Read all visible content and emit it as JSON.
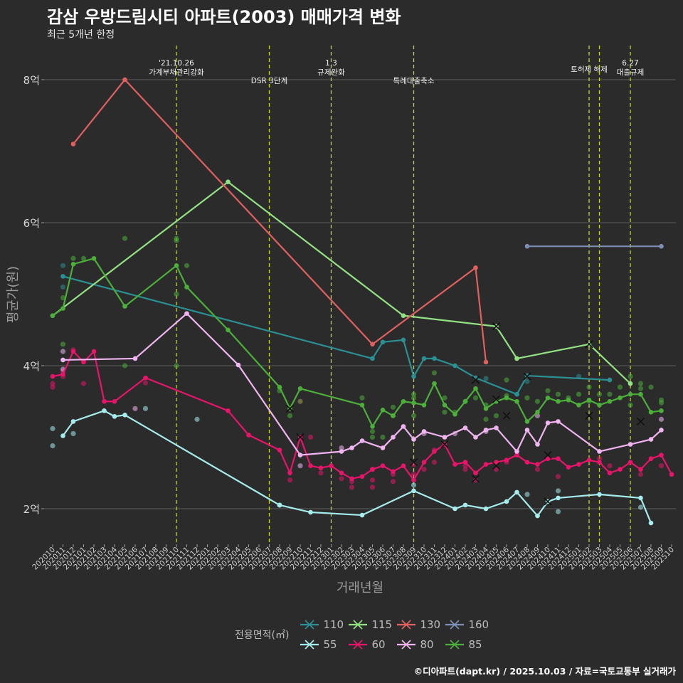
{
  "title": "감삼 우방드림시티 아파트(2003) 매매가격 변화",
  "subtitle": "최근 5개년 한정",
  "caption": "©디아파트(dapt.kr) / 2025.10.03 / 자료=국토교통부 실거래가",
  "chart_data": {
    "type": "line",
    "xlabel": "거래년월",
    "ylabel": "평균가(원)",
    "ylim": [
      1.5,
      8.5
    ],
    "y_ticks": [
      2,
      4,
      6,
      8
    ],
    "y_tick_labels": [
      "2억",
      "4억",
      "6억",
      "8억"
    ],
    "categories": [
      "202010",
      "202011",
      "202012",
      "202101",
      "202102",
      "202103",
      "202104",
      "202105",
      "202106",
      "202107",
      "202108",
      "202109",
      "202110",
      "202111",
      "202112",
      "202201",
      "202202",
      "202203",
      "202204",
      "202205",
      "202206",
      "202207",
      "202208",
      "202209",
      "202210",
      "202211",
      "202212",
      "202301",
      "202302",
      "202303",
      "202304",
      "202305",
      "202306",
      "202307",
      "202308",
      "202309",
      "202310",
      "202311",
      "202312",
      "202401",
      "202402",
      "202403",
      "202404",
      "202405",
      "202406",
      "202407",
      "202408",
      "202409",
      "202410",
      "202411",
      "202412",
      "202501",
      "202502",
      "202503",
      "202504",
      "202505",
      "202506",
      "202507",
      "202508",
      "202509",
      "202510"
    ],
    "legend_title": "전용면적(㎡)",
    "series": [
      {
        "name": "110",
        "color": "#2a9094",
        "x": [
          "202011",
          "202305",
          "202306",
          "202308",
          "202309",
          "202310",
          "202311",
          "202401",
          "202403",
          "202407",
          "202408",
          "202504"
        ],
        "values": [
          5.25,
          4.1,
          4.33,
          4.36,
          3.85,
          4.1,
          4.1,
          4.0,
          3.83,
          3.6,
          3.86,
          3.8
        ]
      },
      {
        "name": "115",
        "color": "#93e283",
        "x": [
          "202010",
          "202203",
          "202308",
          "202405",
          "202407",
          "202502",
          "202506"
        ],
        "values": [
          4.7,
          6.57,
          4.7,
          4.55,
          4.1,
          4.3,
          3.75
        ]
      },
      {
        "name": "130",
        "color": "#e0605f",
        "x": [
          "202012",
          "202105",
          "202305",
          "202403",
          "202404"
        ],
        "values": [
          7.1,
          8.0,
          4.3,
          5.37,
          4.05
        ]
      },
      {
        "name": "160",
        "color": "#7e8fb5",
        "x": [
          "202408",
          "202509"
        ],
        "values": [
          5.67,
          5.67
        ]
      },
      {
        "name": "55",
        "color": "#a6ecec",
        "x": [
          "202011",
          "202012",
          "202103",
          "202104",
          "202105",
          "202208",
          "202211",
          "202304",
          "202309",
          "202401",
          "202402",
          "202404",
          "202406",
          "202407",
          "202409",
          "202410",
          "202411",
          "202503",
          "202507",
          "202508"
        ],
        "values": [
          3.02,
          3.22,
          3.37,
          3.29,
          3.31,
          2.05,
          1.95,
          1.91,
          2.25,
          2.0,
          2.05,
          2.0,
          2.1,
          2.23,
          1.9,
          2.1,
          2.15,
          2.2,
          2.15,
          1.8
        ]
      },
      {
        "name": "60",
        "color": "#e8146a",
        "x": [
          "202010",
          "202011",
          "202012",
          "202101",
          "202102",
          "202103",
          "202104",
          "202107",
          "202203",
          "202205",
          "202208",
          "202209",
          "202210",
          "202211",
          "202212",
          "202301",
          "202302",
          "202303",
          "202304",
          "202305",
          "202306",
          "202307",
          "202308",
          "202309",
          "202310",
          "202311",
          "202312",
          "202401",
          "202402",
          "202403",
          "202404",
          "202405",
          "202406",
          "202407",
          "202408",
          "202409",
          "202410",
          "202411",
          "202412",
          "202501",
          "202502",
          "202503",
          "202504",
          "202505",
          "202506",
          "202507",
          "202508",
          "202509",
          "202510"
        ],
        "values": [
          3.85,
          3.88,
          4.2,
          4.05,
          4.2,
          3.5,
          3.5,
          3.83,
          3.37,
          3.03,
          2.82,
          2.5,
          3.0,
          2.6,
          2.57,
          2.6,
          2.5,
          2.42,
          2.45,
          2.55,
          2.6,
          2.52,
          2.6,
          2.4,
          2.65,
          2.8,
          2.9,
          2.62,
          2.65,
          2.5,
          2.62,
          2.65,
          2.68,
          2.75,
          2.65,
          2.62,
          2.7,
          2.7,
          2.58,
          2.62,
          2.68,
          2.65,
          2.5,
          2.55,
          2.65,
          2.55,
          2.7,
          2.75,
          2.48
        ]
      },
      {
        "name": "80",
        "color": "#f0b4f0",
        "x": [
          "202011",
          "202106",
          "202111",
          "202204",
          "202210",
          "202302",
          "202303",
          "202304",
          "202306",
          "202307",
          "202308",
          "202309",
          "202310",
          "202312",
          "202402",
          "202403",
          "202404",
          "202405",
          "202407",
          "202408",
          "202409",
          "202410",
          "202411",
          "202503",
          "202506",
          "202508",
          "202509"
        ],
        "values": [
          4.08,
          4.1,
          4.73,
          4.01,
          2.75,
          2.8,
          2.85,
          2.95,
          2.85,
          3.0,
          3.15,
          2.97,
          3.08,
          3.0,
          3.13,
          3.0,
          3.1,
          3.13,
          2.8,
          3.1,
          2.9,
          3.2,
          3.22,
          2.8,
          2.9,
          2.97,
          3.1
        ]
      },
      {
        "name": "85",
        "color": "#4caf3a",
        "x": [
          "202010",
          "202011",
          "202012",
          "202102",
          "202105",
          "202110",
          "202111",
          "202203",
          "202208",
          "202209",
          "202210",
          "202304",
          "202305",
          "202306",
          "202307",
          "202308",
          "202309",
          "202310",
          "202311",
          "202312",
          "202401",
          "202402",
          "202403",
          "202404",
          "202405",
          "202406",
          "202407",
          "202408",
          "202409",
          "202410",
          "202411",
          "202412",
          "202501",
          "202502",
          "202503",
          "202504",
          "202505",
          "202506",
          "202507",
          "202508",
          "202509"
        ],
        "values": [
          4.7,
          4.8,
          5.42,
          5.5,
          4.83,
          5.4,
          5.1,
          4.5,
          3.7,
          3.4,
          3.68,
          3.45,
          3.15,
          3.38,
          3.3,
          3.5,
          3.48,
          3.45,
          3.75,
          3.45,
          3.32,
          3.5,
          3.68,
          3.4,
          3.5,
          3.55,
          3.5,
          3.22,
          3.35,
          3.55,
          3.5,
          3.52,
          3.45,
          3.52,
          3.45,
          3.5,
          3.55,
          3.6,
          3.6,
          3.35,
          3.37
        ]
      }
    ],
    "x_markers": [
      {
        "name": "110",
        "x": [
          "202403",
          "202408"
        ],
        "values": [
          3.8,
          3.85
        ]
      },
      {
        "name": "115",
        "x": [
          "202405",
          "202502"
        ],
        "values": [
          4.55,
          4.3
        ]
      },
      {
        "name": "55",
        "x": [
          "202410"
        ],
        "values": [
          2.1
        ]
      },
      {
        "name": "60",
        "x": [
          "202210",
          "202309",
          "202312",
          "202403",
          "202405",
          "202410"
        ],
        "values": [
          3.0,
          2.65,
          2.9,
          2.42,
          2.6,
          2.75
        ]
      },
      {
        "name": "85",
        "x": [
          "202209",
          "202403",
          "202405",
          "202406",
          "202502",
          "202507"
        ],
        "values": [
          3.4,
          3.8,
          3.53,
          3.3,
          3.3,
          3.22
        ]
      }
    ],
    "scatter_points": [
      {
        "name": "110",
        "x": [
          "202011",
          "202011",
          "202404",
          "202408",
          "202501"
        ],
        "values": [
          5.4,
          5.1,
          3.82,
          3.78,
          3.85
        ]
      },
      {
        "name": "55",
        "x": [
          "202010",
          "202010",
          "202012",
          "202107",
          "202112",
          "202208",
          "202309",
          "202408",
          "202411",
          "202411",
          "202507"
        ],
        "values": [
          2.88,
          3.12,
          3.05,
          3.4,
          3.25,
          2.05,
          2.33,
          2.2,
          2.25,
          1.96,
          2.02
        ]
      },
      {
        "name": "60",
        "x": [
          "202010",
          "202010",
          "202011",
          "202011",
          "202012",
          "202101",
          "202107",
          "202209",
          "202210",
          "202211",
          "202212",
          "202302",
          "202303",
          "202303",
          "202305",
          "202305",
          "202305",
          "202307",
          "202307",
          "202309",
          "202309",
          "202310",
          "202311",
          "202311",
          "202402",
          "202402",
          "202403",
          "202405",
          "202406",
          "202409",
          "202411",
          "202503",
          "202504",
          "202507",
          "202509"
        ],
        "values": [
          3.75,
          3.7,
          3.85,
          3.92,
          4.22,
          3.75,
          3.76,
          2.4,
          3.5,
          3.0,
          2.5,
          2.42,
          2.3,
          2.38,
          2.3,
          2.4,
          2.55,
          2.38,
          2.48,
          2.48,
          2.62,
          2.55,
          2.65,
          2.82,
          2.55,
          2.6,
          2.4,
          2.55,
          2.65,
          2.55,
          2.45,
          2.7,
          2.6,
          2.48,
          2.6
        ]
      },
      {
        "name": "80",
        "x": [
          "202011",
          "202011",
          "202106",
          "202210",
          "202302",
          "202310",
          "202401",
          "202404",
          "202409",
          "202509"
        ],
        "values": [
          4.2,
          3.95,
          3.4,
          2.6,
          2.85,
          3.05,
          3.05,
          3.08,
          3.3,
          3.25
        ]
      },
      {
        "name": "85",
        "x": [
          "202011",
          "202011",
          "202012",
          "202101",
          "202105",
          "202105",
          "202110",
          "202110",
          "202110",
          "202110",
          "202111",
          "202208",
          "202209",
          "202210",
          "202304",
          "202305",
          "202305",
          "202306",
          "202307",
          "202307",
          "202309",
          "202309",
          "202309",
          "202311",
          "202312",
          "202312",
          "202401",
          "202402",
          "202403",
          "202404",
          "202404",
          "202405",
          "202406",
          "202406",
          "202408",
          "202409",
          "202410",
          "202411",
          "202412",
          "202501",
          "202502",
          "202502",
          "202503",
          "202504",
          "202505",
          "202506",
          "202506",
          "202507",
          "202507",
          "202508",
          "202509",
          "202509"
        ],
        "values": [
          4.3,
          4.95,
          5.5,
          5.5,
          5.78,
          4.0,
          5.78,
          5.0,
          5.75,
          4.0,
          5.4,
          3.65,
          3.3,
          3.5,
          3.55,
          3.0,
          3.08,
          3.0,
          3.42,
          3.3,
          3.55,
          3.6,
          3.3,
          3.9,
          3.55,
          3.35,
          3.35,
          3.5,
          3.55,
          3.45,
          3.25,
          3.3,
          3.8,
          3.58,
          3.55,
          3.5,
          3.65,
          3.6,
          3.55,
          3.6,
          3.7,
          3.5,
          3.6,
          3.6,
          3.7,
          3.45,
          3.85,
          3.68,
          3.75,
          3.7,
          3.52,
          3.48
        ]
      }
    ],
    "events": [
      {
        "x": "202110",
        "label": "'21.10.26\n가계부채관리강화"
      },
      {
        "x": "202207",
        "label": "DSR 3단계"
      },
      {
        "x": "202301",
        "label": "1.3\n규제완화"
      },
      {
        "x": "202309",
        "label": "특례대출축소"
      },
      {
        "x": "202502",
        "label": "토허제 해제"
      },
      {
        "x": "202503",
        "label": ""
      },
      {
        "x": "202506",
        "label": "6.27\n대출규제"
      }
    ]
  }
}
